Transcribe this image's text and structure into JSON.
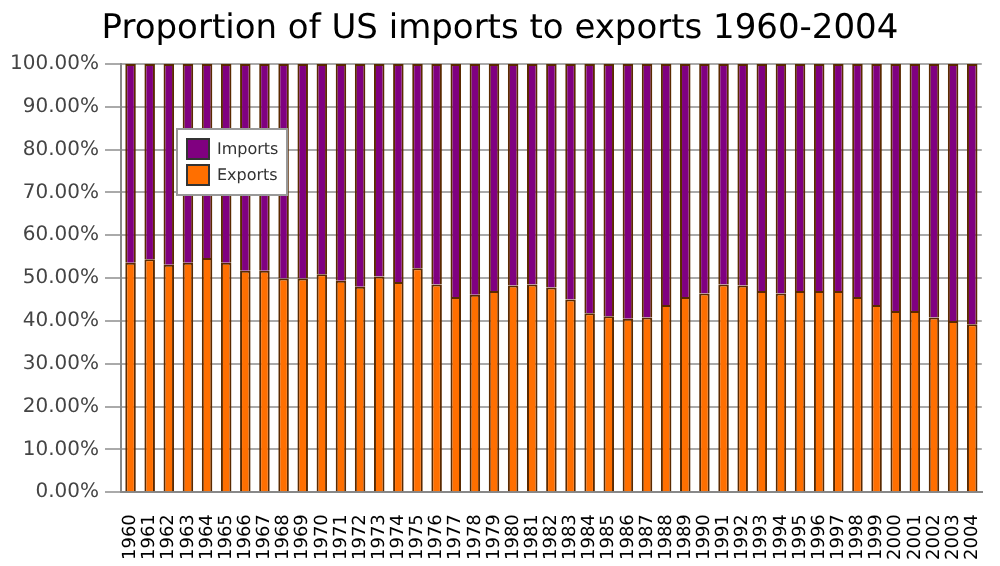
{
  "chart_data": {
    "type": "bar",
    "title": "Proportion of US imports to exports 1960-2004",
    "stacked": true,
    "categories": [
      "1960",
      "1961",
      "1962",
      "1963",
      "1964",
      "1965",
      "1966",
      "1967",
      "1968",
      "1969",
      "1970",
      "1971",
      "1972",
      "1973",
      "1974",
      "1975",
      "1976",
      "1977",
      "1978",
      "1979",
      "1980",
      "1981",
      "1982",
      "1983",
      "1984",
      "1985",
      "1986",
      "1987",
      "1988",
      "1989",
      "1990",
      "1991",
      "1992",
      "1993",
      "1994",
      "1995",
      "1996",
      "1997",
      "1998",
      "1999",
      "2000",
      "2001",
      "2002",
      "2003",
      "2004"
    ],
    "series": [
      {
        "name": "Exports",
        "color": "#ff6f00",
        "values": [
          53.6,
          54.4,
          53.1,
          53.6,
          54.7,
          53.6,
          51.7,
          51.7,
          49.9,
          49.9,
          50.9,
          49.4,
          48.0,
          50.4,
          49.1,
          52.3,
          48.5,
          45.6,
          46.1,
          47.0,
          48.3,
          48.5,
          47.8,
          45.0,
          41.8,
          41.1,
          40.5,
          40.8,
          43.7,
          45.6,
          46.4,
          48.5,
          48.3,
          47.0,
          46.4,
          47.0,
          47.0,
          47.0,
          45.6,
          43.7,
          42.3,
          42.3,
          40.8,
          40.0,
          39.2
        ]
      },
      {
        "name": "Imports",
        "color": "#800080",
        "values": [
          46.4,
          45.6,
          46.9,
          46.4,
          45.3,
          46.4,
          48.3,
          48.3,
          50.1,
          50.1,
          49.1,
          50.6,
          52.0,
          49.6,
          50.9,
          47.7,
          51.5,
          54.4,
          53.9,
          53.0,
          51.7,
          51.5,
          52.2,
          55.0,
          58.2,
          58.9,
          59.5,
          59.2,
          56.3,
          54.4,
          53.6,
          51.5,
          51.7,
          53.0,
          53.6,
          53.0,
          53.0,
          53.0,
          54.4,
          56.3,
          57.7,
          57.7,
          59.2,
          60.0,
          60.8
        ]
      }
    ],
    "ylim": [
      0,
      100
    ],
    "yticks": [
      {
        "value": 0,
        "label": "0.00%"
      },
      {
        "value": 10,
        "label": "10.00%"
      },
      {
        "value": 20,
        "label": "20.00%"
      },
      {
        "value": 30,
        "label": "30.00%"
      },
      {
        "value": 40,
        "label": "40.00%"
      },
      {
        "value": 50,
        "label": "50.00%"
      },
      {
        "value": 60,
        "label": "60.00%"
      },
      {
        "value": 70,
        "label": "70.00%"
      },
      {
        "value": 80,
        "label": "80.00%"
      },
      {
        "value": 90,
        "label": "90.00%"
      },
      {
        "value": 100,
        "label": "100.00%"
      }
    ],
    "grid": "y",
    "legend": "top left"
  }
}
